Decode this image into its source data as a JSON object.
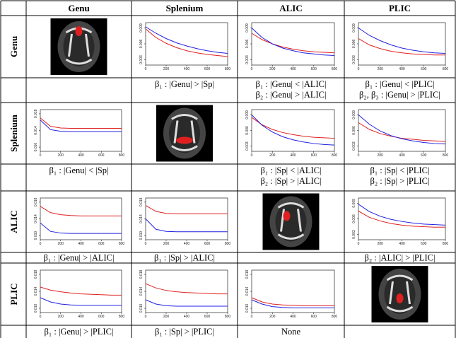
{
  "table": {
    "columns": [
      "Genu",
      "Splenium",
      "ALIC",
      "PLIC"
    ],
    "plot_xlim": [
      0,
      800
    ],
    "plot_xticks": [
      0,
      200,
      400,
      600,
      800
    ],
    "plot_x": [
      0,
      100,
      200,
      300,
      400,
      500,
      600,
      700,
      800
    ],
    "rows": [
      {
        "label": "Genu",
        "cells": [
          null,
          {
            "ylim": [
              0.002,
              0.01
            ],
            "yticks": [
              0.003,
              0.006,
              0.009
            ],
            "series": [
              {
                "color": "#e02020",
                "values": [
                  0.0088,
                  0.0072,
                  0.0061,
                  0.0053,
                  0.0047,
                  0.0043,
                  0.004,
                  0.0038,
                  0.0036
                ]
              },
              {
                "color": "#2020e0",
                "values": [
                  0.0092,
                  0.008,
                  0.007,
                  0.0062,
                  0.0056,
                  0.0051,
                  0.0047,
                  0.0044,
                  0.0042
                ]
              }
            ]
          },
          {
            "ylim": [
              0.002,
              0.01
            ],
            "yticks": [
              0.003,
              0.006,
              0.009
            ],
            "series": [
              {
                "color": "#e02020",
                "values": [
                  0.008,
                  0.0068,
                  0.006,
                  0.0054,
                  0.005,
                  0.0047,
                  0.0045,
                  0.0044,
                  0.0043
                ]
              },
              {
                "color": "#2020e0",
                "values": [
                  0.009,
                  0.0072,
                  0.006,
                  0.0052,
                  0.0047,
                  0.0043,
                  0.0041,
                  0.0039,
                  0.0038
                ]
              }
            ]
          },
          {
            "ylim": [
              0.002,
              0.01
            ],
            "yticks": [
              0.003,
              0.006,
              0.009
            ],
            "series": [
              {
                "color": "#e02020",
                "values": [
                  0.007,
                  0.0058,
                  0.0051,
                  0.0046,
                  0.0043,
                  0.0041,
                  0.004,
                  0.0039,
                  0.0039
                ]
              },
              {
                "color": "#2020e0",
                "values": [
                  0.009,
                  0.0076,
                  0.0066,
                  0.0058,
                  0.0052,
                  0.0048,
                  0.0045,
                  0.0043,
                  0.0042
                ]
              }
            ]
          }
        ],
        "notes": [
          [],
          [
            "β₁ : |Genu| > |Sp|"
          ],
          [
            "β₁ : |Genu| < |ALIC|",
            "β₂ : |Genu| > |ALIC|"
          ],
          [
            "β₁ : |Genu| < |PLIC|",
            "β₂, β₃ : |Genu| > |PLIC|"
          ]
        ]
      },
      {
        "label": "Splenium",
        "cells": [
          {
            "ylim": [
              0.009,
              0.019
            ],
            "yticks": [
              {
                "value": 0.01,
                "label": "0.010"
              },
              0.014,
              0.018
            ],
            "series": [
              {
                "color": "#e02020",
                "values": [
                  0.017,
                  0.015,
                  0.0146,
                  0.0145,
                  0.0145,
                  0.0145,
                  0.0145,
                  0.0145,
                  0.0145
                ]
              },
              {
                "color": "#2020e0",
                "values": [
                  0.0165,
                  0.0142,
                  0.0138,
                  0.0137,
                  0.0137,
                  0.0137,
                  0.0137,
                  0.0137,
                  0.0137
                ]
              }
            ]
          },
          null,
          {
            "ylim": [
              0.002,
              0.01
            ],
            "yticks": [
              0.003,
              0.006,
              0.009
            ],
            "series": [
              {
                "color": "#e02020",
                "values": [
                  0.0085,
                  0.0071,
                  0.0062,
                  0.0056,
                  0.0052,
                  0.0049,
                  0.0047,
                  0.0046,
                  0.0045
                ]
              },
              {
                "color": "#2020e0",
                "values": [
                  0.009,
                  0.007,
                  0.0057,
                  0.0048,
                  0.0042,
                  0.0038,
                  0.0035,
                  0.0033,
                  0.0032
                ]
              }
            ]
          },
          {
            "ylim": [
              0.002,
              0.01
            ],
            "yticks": [
              0.003,
              0.006,
              0.009
            ],
            "series": [
              {
                "color": "#e02020",
                "values": [
                  0.0075,
                  0.0062,
                  0.0054,
                  0.0049,
                  0.0045,
                  0.0043,
                  0.0041,
                  0.004,
                  0.0039
                ]
              },
              {
                "color": "#2020e0",
                "values": [
                  0.009,
                  0.0072,
                  0.0059,
                  0.005,
                  0.0044,
                  0.004,
                  0.0037,
                  0.0035,
                  0.0034
                ]
              }
            ]
          }
        ],
        "notes": [
          [
            "β₁ : |Genu| < |Sp|"
          ],
          [],
          [
            "β₁ : |Sp| < |ALIC|",
            "β₂ : |Sp| > |ALIC|"
          ],
          [
            "β₁ : |Sp| < |PLIC|",
            "β₂ : |Sp| > |PLIC|"
          ]
        ]
      },
      {
        "label": "ALIC",
        "cells": [
          {
            "ylim": [
              0.009,
              0.019
            ],
            "yticks": [
              {
                "value": 0.01,
                "label": "0.010"
              },
              0.014,
              0.018
            ],
            "series": [
              {
                "color": "#e02020",
                "values": [
                  0.017,
                  0.0155,
                  0.015,
                  0.0148,
                  0.0147,
                  0.0147,
                  0.0147,
                  0.0147,
                  0.0147
                ]
              },
              {
                "color": "#2020e0",
                "values": [
                  0.013,
                  0.011,
                  0.0106,
                  0.0105,
                  0.0105,
                  0.0105,
                  0.0105,
                  0.0105,
                  0.0105
                ]
              }
            ]
          },
          {
            "ylim": [
              0.009,
              0.019
            ],
            "yticks": [
              {
                "value": 0.01,
                "label": "0.010"
              },
              0.014,
              0.018
            ],
            "series": [
              {
                "color": "#e02020",
                "values": [
                  0.0172,
                  0.0158,
                  0.0153,
                  0.0152,
                  0.0152,
                  0.0152,
                  0.0152,
                  0.0152,
                  0.0152
                ]
              },
              {
                "color": "#2020e0",
                "values": [
                  0.014,
                  0.0115,
                  0.011,
                  0.0109,
                  0.0109,
                  0.0109,
                  0.0109,
                  0.0109,
                  0.0109
                ]
              }
            ]
          },
          null,
          {
            "ylim": [
              0.002,
              0.01
            ],
            "yticks": [
              0.003,
              0.006,
              0.009
            ],
            "series": [
              {
                "color": "#e02020",
                "values": [
                  0.0075,
                  0.0063,
                  0.0056,
                  0.0051,
                  0.0048,
                  0.0046,
                  0.0045,
                  0.0044,
                  0.0044
                ]
              },
              {
                "color": "#2020e0",
                "values": [
                  0.0088,
                  0.0074,
                  0.0065,
                  0.0059,
                  0.0055,
                  0.0052,
                  0.005,
                  0.0049,
                  0.0048
                ]
              }
            ]
          }
        ],
        "notes": [
          [
            "β₁ : |Genu| > |ALIC|"
          ],
          [
            "β₁ : |Sp| > |ALIC|"
          ],
          [],
          [
            "β₂ : |ALIC| > |PLIC|"
          ]
        ]
      },
      {
        "label": "PLIC",
        "cells": [
          {
            "ylim": [
              0.009,
              0.019
            ],
            "yticks": [
              {
                "value": 0.01,
                "label": "0.010"
              },
              0.014,
              0.018
            ],
            "series": [
              {
                "color": "#e02020",
                "values": [
                  0.015,
                  0.0143,
                  0.0139,
                  0.0136,
                  0.0134,
                  0.0133,
                  0.0132,
                  0.0131,
                  0.0131
                ]
              },
              {
                "color": "#2020e0",
                "values": [
                  0.0125,
                  0.0115,
                  0.011,
                  0.0108,
                  0.0107,
                  0.0107,
                  0.0107,
                  0.0107,
                  0.0107
                ]
              }
            ]
          },
          {
            "ylim": [
              0.009,
              0.019
            ],
            "yticks": [
              {
                "value": 0.01,
                "label": "0.010"
              },
              0.014,
              0.018
            ],
            "series": [
              {
                "color": "#e02020",
                "values": [
                  0.0158,
                  0.0148,
                  0.0142,
                  0.0139,
                  0.0137,
                  0.0136,
                  0.0135,
                  0.0134,
                  0.0134
                ]
              },
              {
                "color": "#2020e0",
                "values": [
                  0.012,
                  0.011,
                  0.0106,
                  0.0105,
                  0.0105,
                  0.0105,
                  0.0105,
                  0.0105,
                  0.0105
                ]
              }
            ]
          },
          {
            "ylim": [
              0.009,
              0.019
            ],
            "yticks": [
              {
                "value": 0.01,
                "label": "0.010"
              },
              0.014,
              0.018
            ],
            "series": [
              {
                "color": "#e02020",
                "values": [
                  0.0125,
                  0.0115,
                  0.011,
                  0.0108,
                  0.0107,
                  0.0106,
                  0.0106,
                  0.0106,
                  0.0106
                ]
              },
              {
                "color": "#2020e0",
                "values": [
                  0.012,
                  0.011,
                  0.0104,
                  0.0102,
                  0.0101,
                  0.0101,
                  0.0101,
                  0.0101,
                  0.0101
                ]
              }
            ]
          },
          null
        ],
        "notes": [
          [
            "β₁ : |Genu| > |PLIC|"
          ],
          [
            "β₁ : |Sp| > |PLIC|"
          ],
          [
            "None"
          ],
          []
        ]
      }
    ]
  }
}
